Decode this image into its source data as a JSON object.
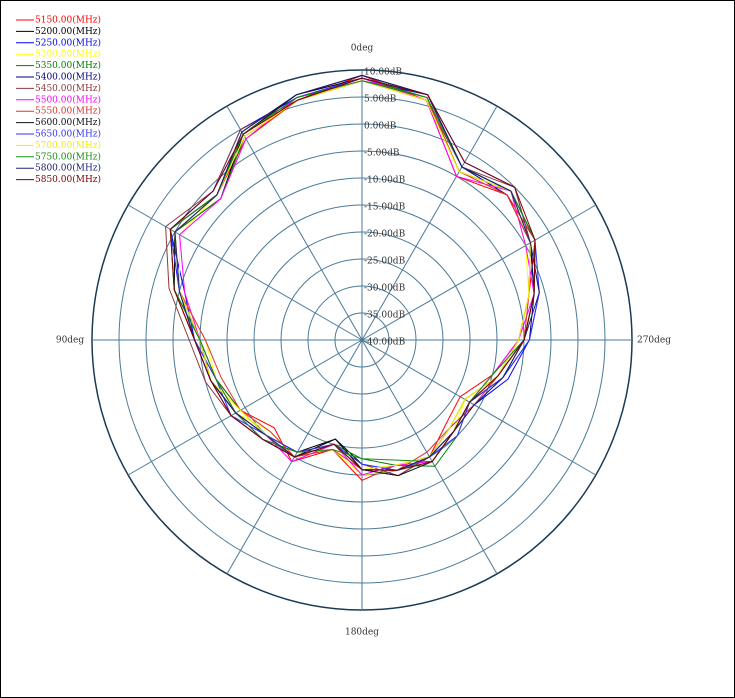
{
  "chart_data": {
    "type": "polar",
    "x": [
      0,
      15,
      30,
      45,
      60,
      75,
      90,
      105,
      120,
      135,
      150,
      165,
      180,
      195,
      210,
      225,
      240,
      255,
      270,
      285,
      300,
      315,
      330,
      345
    ],
    "xticks": [
      {
        "value": 0,
        "label": "0deg"
      },
      {
        "value": 90,
        "label": "90deg"
      },
      {
        "value": 180,
        "label": "180deg"
      },
      {
        "value": 270,
        "label": "270deg"
      }
    ],
    "xgrid": [
      0,
      30,
      60,
      90,
      120,
      150,
      180,
      210,
      240,
      270,
      300,
      330
    ],
    "ylim": [
      -40,
      10
    ],
    "yticks": [
      {
        "value": 10,
        "label": "10.00dB"
      },
      {
        "value": 5,
        "label": "5.00dB"
      },
      {
        "value": 0,
        "label": "0.00dB"
      },
      {
        "value": -5,
        "label": "-5.00dB"
      },
      {
        "value": -10,
        "label": "-10.00dB"
      },
      {
        "value": -15,
        "label": "-15.00dB"
      },
      {
        "value": -20,
        "label": "-20.00dB"
      },
      {
        "value": -25,
        "label": "-25.00dB"
      },
      {
        "value": -30,
        "label": "-30.00dB"
      },
      {
        "value": -35,
        "label": "-35.00dB"
      },
      {
        "value": -40,
        "label": "-40.00dB"
      }
    ],
    "grid": true,
    "legend": "top-left",
    "series": [
      {
        "name": "5150.00(MHz)",
        "color": "#ff0000",
        "values": [
          9,
          6,
          3,
          -2,
          1,
          -4,
          -9,
          -12,
          -14,
          -17,
          -14,
          -19,
          -14,
          -16,
          -15,
          -18,
          -19,
          -15,
          -11,
          -8,
          -3,
          -2,
          -5,
          6
        ]
      },
      {
        "name": "5200.00(MHz)",
        "color": "#000000",
        "values": [
          8.5,
          7,
          4,
          -3,
          0,
          -5,
          -10,
          -11,
          -13,
          -15,
          -16,
          -21,
          -17,
          -15,
          -14,
          -16,
          -17,
          -13,
          -10,
          -7,
          -4,
          -1,
          -3,
          7
        ]
      },
      {
        "name": "5250.00(MHz)",
        "color": "#0000ff",
        "values": [
          8,
          6.5,
          5,
          -1,
          1,
          -6,
          -9,
          -11,
          -12,
          -14,
          -15,
          -20,
          -16,
          -14,
          -15,
          -17,
          -16,
          -12,
          -9,
          -6,
          -4,
          0,
          -2,
          7
        ]
      },
      {
        "name": "5300.00(MHz)",
        "color": "#ffff00",
        "values": [
          8,
          6,
          4,
          -2,
          -1,
          -5,
          -11,
          -12,
          -13,
          -16,
          -15,
          -19,
          -15,
          -15,
          -14,
          -16,
          -18,
          -14,
          -11,
          -8,
          -5,
          -1,
          -4,
          6
        ]
      },
      {
        "name": "5350.00(MHz)",
        "color": "#008000",
        "values": [
          8.5,
          6,
          3.5,
          -3,
          0,
          -4,
          -10,
          -12,
          -14,
          -15,
          -16,
          -20,
          -18,
          -16,
          -13,
          -15,
          -17,
          -15,
          -10,
          -7,
          -3,
          -1,
          -4,
          6.5
        ]
      },
      {
        "name": "5400.00(MHz)",
        "color": "#000080",
        "values": [
          9,
          7,
          4.5,
          -2,
          1,
          -5,
          -9,
          -11,
          -13,
          -14,
          -15,
          -21,
          -16,
          -15,
          -15,
          -16,
          -16,
          -13,
          -9,
          -7,
          -4,
          -2,
          -3,
          7
        ]
      },
      {
        "name": "5450.00(MHz)",
        "color": "#8b3a3a",
        "values": [
          8,
          6,
          5,
          -1,
          2,
          -3,
          -8,
          -10,
          -12,
          -14,
          -16,
          -20,
          -17,
          -14,
          -15,
          -17,
          -18,
          -14,
          -11,
          -8,
          -4,
          0,
          -3,
          6
        ]
      },
      {
        "name": "5500.00(MHz)",
        "color": "#ff00ff",
        "values": [
          8.5,
          6.5,
          3,
          -3,
          -1,
          -6,
          -10,
          -12,
          -13,
          -15,
          -14,
          -20,
          -15,
          -16,
          -14,
          -16,
          -17,
          -15,
          -11,
          -7,
          -5,
          -1,
          -5,
          6
        ]
      },
      {
        "name": "5550.00(MHz)",
        "color": "#e03030",
        "values": [
          8,
          6,
          4,
          -2,
          0,
          -5,
          -11,
          -13,
          -14,
          -16,
          -15,
          -19,
          -16,
          -15,
          -16,
          -17,
          -16,
          -14,
          -10,
          -8,
          -4,
          -2,
          -4,
          6.5
        ]
      },
      {
        "name": "5600.00(MHz)",
        "color": "#101010",
        "values": [
          9,
          7,
          4,
          -2,
          0,
          -4,
          -10,
          -11,
          -13,
          -15,
          -15,
          -21,
          -16,
          -14,
          -14,
          -16,
          -17,
          -14,
          -10,
          -7,
          -3,
          -1,
          -3,
          7
        ]
      },
      {
        "name": "5650.00(MHz)",
        "color": "#3030ff",
        "values": [
          8.5,
          6.5,
          4,
          -1,
          1,
          -5,
          -9,
          -12,
          -12,
          -15,
          -16,
          -20,
          -17,
          -15,
          -15,
          -15,
          -17,
          -13,
          -9,
          -6,
          -3,
          -1,
          -3,
          7
        ]
      },
      {
        "name": "5700.00(MHz)",
        "color": "#f0f000",
        "values": [
          8,
          6,
          3.5,
          -2,
          0,
          -5,
          -10,
          -11,
          -14,
          -15,
          -15,
          -20,
          -16,
          -16,
          -15,
          -17,
          -18,
          -14,
          -11,
          -8,
          -4,
          -1,
          -4,
          6
        ]
      },
      {
        "name": "5750.00(MHz)",
        "color": "#109010",
        "values": [
          8,
          6.5,
          4,
          -2,
          1,
          -4,
          -10,
          -12,
          -13,
          -14,
          -16,
          -19,
          -18,
          -17,
          -14,
          -16,
          -17,
          -15,
          -10,
          -7,
          -3,
          -1,
          -3,
          6.5
        ]
      },
      {
        "name": "5800.00(MHz)",
        "color": "#202070",
        "values": [
          9,
          7,
          4.5,
          -2,
          0,
          -5,
          -9,
          -11,
          -13,
          -15,
          -15,
          -20,
          -16,
          -15,
          -15,
          -16,
          -16,
          -13,
          -10,
          -6,
          -4,
          -1,
          -3,
          7
        ]
      },
      {
        "name": "5850.00(MHz)",
        "color": "#800000",
        "values": [
          8.5,
          6,
          4,
          -1,
          1,
          -4,
          -9,
          -11,
          -12,
          -14,
          -15,
          -20,
          -16,
          -15,
          -14,
          -16,
          -17,
          -14,
          -10,
          -7,
          -3,
          0,
          -2,
          7
        ]
      }
    ]
  }
}
